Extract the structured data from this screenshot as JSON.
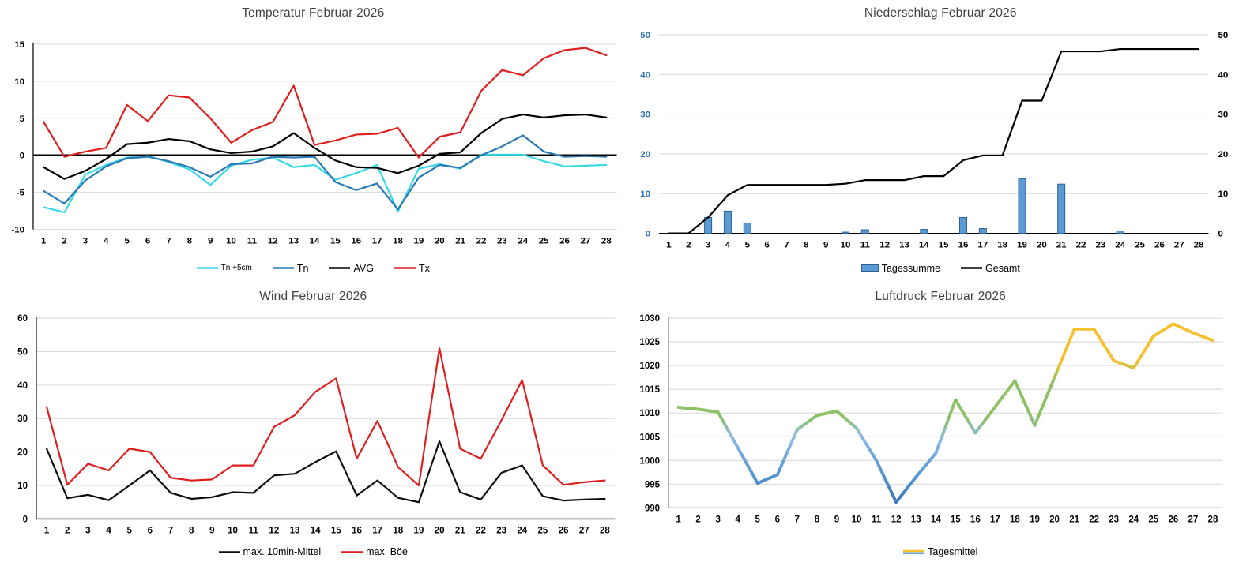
{
  "page": {
    "background": "#ffffff",
    "divider_color": "#c4c4c4",
    "title_color": "#3f3f3f"
  },
  "chart_data": [
    {
      "id": "temperature",
      "type": "line",
      "title": "Temperatur Februar 2026",
      "categories": [
        1,
        2,
        3,
        4,
        5,
        6,
        7,
        8,
        9,
        10,
        11,
        12,
        13,
        14,
        15,
        16,
        17,
        18,
        19,
        20,
        21,
        22,
        23,
        24,
        25,
        26,
        27,
        28
      ],
      "ylim": [
        -10,
        15
      ],
      "yticks": [
        -10,
        -5,
        0,
        5,
        10,
        15
      ],
      "zero_line": true,
      "grid": true,
      "legend_position": "bottom",
      "series": [
        {
          "name": "Tn +5cm",
          "color": "#36d9e6",
          "values": [
            -7.0,
            -7.7,
            -2.6,
            -1.3,
            -0.3,
            -0.1,
            -0.9,
            -1.9,
            -4.0,
            -1.4,
            -0.6,
            -0.3,
            -1.6,
            -1.3,
            -3.3,
            -2.4,
            -1.3,
            -7.6,
            -1.8,
            -1.2,
            -1.8,
            0.1,
            0.1,
            0.1,
            -0.8,
            -1.5,
            -1.4,
            -1.3
          ]
        },
        {
          "name": "Tn",
          "color": "#2979b5",
          "values": [
            -4.8,
            -6.5,
            -3.4,
            -1.5,
            -0.4,
            -0.2,
            -0.8,
            -1.6,
            -2.9,
            -1.2,
            -1.1,
            -0.2,
            -0.3,
            -0.2,
            -3.6,
            -4.7,
            -3.8,
            -7.3,
            -3.0,
            -1.3,
            -1.7,
            0.0,
            1.2,
            2.7,
            0.5,
            -0.2,
            -0.1,
            -0.2
          ]
        },
        {
          "name": "AVG",
          "color": "#000000",
          "values": [
            -1.6,
            -3.2,
            -2.1,
            -0.5,
            1.5,
            1.7,
            2.2,
            1.9,
            0.8,
            0.3,
            0.5,
            1.2,
            3.0,
            1.0,
            -0.7,
            -1.6,
            -1.7,
            -2.4,
            -1.4,
            0.2,
            0.4,
            3.0,
            4.9,
            5.5,
            5.1,
            5.4,
            5.5,
            5.1
          ]
        },
        {
          "name": "Tx",
          "color": "#dd1f1f",
          "values": [
            4.5,
            -0.2,
            0.5,
            1.0,
            6.8,
            4.6,
            8.1,
            7.8,
            5.0,
            1.7,
            3.4,
            4.5,
            9.4,
            1.4,
            2.0,
            2.8,
            2.9,
            3.7,
            -0.3,
            2.5,
            3.1,
            8.7,
            11.5,
            10.8,
            13.1,
            14.2,
            14.5,
            13.5
          ]
        }
      ]
    },
    {
      "id": "precipitation",
      "type": "bar+line",
      "title": "Niederschlag Februar 2026",
      "categories": [
        1,
        2,
        3,
        4,
        5,
        6,
        7,
        8,
        9,
        10,
        11,
        12,
        13,
        14,
        15,
        16,
        17,
        18,
        19,
        20,
        21,
        22,
        23,
        24,
        25,
        26,
        27,
        28
      ],
      "ylim": [
        0,
        50
      ],
      "yticks": [
        0,
        10,
        20,
        30,
        40,
        50
      ],
      "left_axis_color": "#2e75b6",
      "right_axis_labels": true,
      "grid": true,
      "legend_position": "bottom",
      "series": [
        {
          "name": "Tagessumme",
          "type": "bar",
          "fill": "#5b9bd5",
          "stroke": "#2e5f8f",
          "values": [
            0,
            0,
            4.0,
            5.6,
            2.6,
            0,
            0,
            0,
            0,
            0.3,
            0.9,
            0,
            0,
            1.0,
            0,
            4.0,
            1.2,
            0,
            13.8,
            0,
            12.4,
            0,
            0,
            0.6,
            0,
            0,
            0,
            0
          ]
        },
        {
          "name": "Gesamt",
          "type": "line",
          "color": "#000000",
          "values": [
            0,
            0,
            4.0,
            9.6,
            12.2,
            12.2,
            12.2,
            12.2,
            12.2,
            12.5,
            13.4,
            13.4,
            13.4,
            14.4,
            14.4,
            18.4,
            19.6,
            19.6,
            33.4,
            33.4,
            45.8,
            45.8,
            45.8,
            46.4,
            46.4,
            46.4,
            46.4,
            46.4
          ]
        }
      ]
    },
    {
      "id": "wind",
      "type": "line",
      "title": "Wind Februar 2026",
      "categories": [
        1,
        2,
        3,
        4,
        5,
        6,
        7,
        8,
        9,
        10,
        11,
        12,
        13,
        14,
        15,
        16,
        17,
        18,
        19,
        20,
        21,
        22,
        23,
        24,
        25,
        26,
        27,
        28
      ],
      "ylim": [
        0,
        60
      ],
      "yticks": [
        0,
        10,
        20,
        30,
        40,
        50,
        60
      ],
      "grid": true,
      "legend_position": "bottom",
      "series": [
        {
          "name": "max. 10min-Mittel",
          "color": "#0d0d0d",
          "values": [
            21,
            6.2,
            7.2,
            5.6,
            10,
            14.5,
            7.8,
            6,
            6.5,
            8,
            7.8,
            13,
            13.5,
            17,
            20.2,
            7,
            11.5,
            6.3,
            5,
            23.2,
            8,
            5.8,
            13.8,
            16,
            6.8,
            5.5,
            5.8,
            6
          ]
        },
        {
          "name": "max. Böe",
          "color": "#dd1f1f",
          "values": [
            33.5,
            10.2,
            16.5,
            14.5,
            21,
            20,
            12.3,
            11.5,
            11.8,
            16,
            16,
            27.5,
            31,
            38,
            42,
            18,
            29.3,
            15.5,
            10,
            51,
            21,
            18,
            29.5,
            41.5,
            16,
            10.2,
            11,
            11.5
          ]
        }
      ]
    },
    {
      "id": "pressure",
      "type": "gradient-line",
      "title": "Luftdruck Februar 2026",
      "categories": [
        1,
        2,
        3,
        4,
        5,
        6,
        7,
        8,
        9,
        10,
        11,
        12,
        13,
        14,
        15,
        16,
        17,
        18,
        19,
        20,
        21,
        22,
        23,
        24,
        25,
        26,
        27,
        28
      ],
      "ylim": [
        990,
        1030
      ],
      "yticks": [
        990,
        995,
        1000,
        1005,
        1010,
        1015,
        1020,
        1025,
        1030
      ],
      "grid": true,
      "legend_position": "bottom",
      "series": [
        {
          "name": "Tagesmittel",
          "colormap": [
            [
              991,
              "#3876bb"
            ],
            [
              998,
              "#5a9ad2"
            ],
            [
              1005,
              "#8fbce6"
            ],
            [
              1009,
              "#8dc163"
            ],
            [
              1017,
              "#8dc163"
            ],
            [
              1021,
              "#f5c12f"
            ]
          ],
          "legend_colors": [
            "#f5c12f",
            "#6fa8dc"
          ],
          "values": [
            1011.2,
            1010.8,
            1010.2,
            1002.7,
            995.2,
            997.0,
            1006.5,
            1009.5,
            1010.4,
            1006.8,
            1000.0,
            991.2,
            996.5,
            1001.5,
            1012.8,
            1005.8,
            1011.3,
            1016.8,
            1007.4,
            1017.5,
            1027.7,
            1027.7,
            1021.0,
            1019.5,
            1026.2,
            1028.8,
            1026.9,
            1025.3
          ]
        }
      ]
    }
  ]
}
